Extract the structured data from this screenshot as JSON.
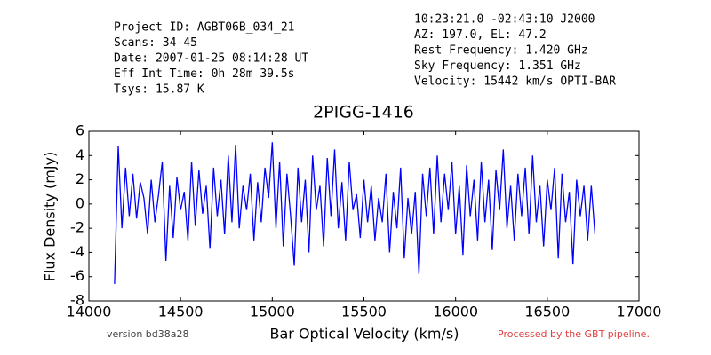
{
  "chart_data": {
    "type": "line",
    "title": "2PIGG-1416",
    "header_left": [
      "Project ID: AGBT06B_034_21",
      "Scans: 34-45",
      "Date: 2007-01-25 08:14:28 UT",
      "Eff Int Time: 0h 28m 39.5s",
      "Tsys: 15.87 K"
    ],
    "header_right": [
      "10:23:21.0 -02:43:10 J2000",
      "AZ: 197.0, EL: 47.2",
      "Rest Frequency:   1.420 GHz",
      "Sky Frequency:    1.351 GHz",
      "Velocity: 15442 km/s OPTI-BAR"
    ],
    "footer_left": "version bd38a28",
    "footer_right": "Processed by the GBT pipeline.",
    "x_label": "Bar Optical Velocity (km/s)",
    "y_label": "Flux Density (mJy)",
    "xlim": [
      14000,
      17000
    ],
    "xticks": [
      14000,
      14500,
      15000,
      15500,
      16000,
      16500,
      17000
    ],
    "ylim": [
      -8,
      6
    ],
    "yticks": [
      -8,
      -6,
      -4,
      -2,
      0,
      2,
      4,
      6
    ],
    "x": [
      14140,
      14160,
      14180,
      14200,
      14220,
      14240,
      14260,
      14280,
      14300,
      14320,
      14340,
      14360,
      14380,
      14400,
      14420,
      14440,
      14460,
      14480,
      14500,
      14520,
      14540,
      14560,
      14580,
      14600,
      14620,
      14640,
      14660,
      14680,
      14700,
      14720,
      14740,
      14760,
      14780,
      14800,
      14820,
      14840,
      14860,
      14880,
      14900,
      14920,
      14940,
      14960,
      14980,
      15000,
      15020,
      15040,
      15060,
      15080,
      15100,
      15120,
      15140,
      15160,
      15180,
      15200,
      15220,
      15240,
      15260,
      15280,
      15300,
      15320,
      15340,
      15360,
      15380,
      15400,
      15420,
      15440,
      15460,
      15480,
      15500,
      15520,
      15540,
      15560,
      15580,
      15600,
      15620,
      15640,
      15660,
      15680,
      15700,
      15720,
      15740,
      15760,
      15780,
      15800,
      15820,
      15840,
      15860,
      15880,
      15900,
      15920,
      15940,
      15960,
      15980,
      16000,
      16020,
      16040,
      16060,
      16080,
      16100,
      16120,
      16140,
      16160,
      16180,
      16200,
      16220,
      16240,
      16260,
      16280,
      16300,
      16320,
      16340,
      16360,
      16380,
      16400,
      16420,
      16440,
      16460,
      16480,
      16500,
      16520,
      16540,
      16560,
      16580,
      16600,
      16620,
      16640,
      16660,
      16680,
      16700,
      16720,
      16740,
      16760
    ],
    "series": [
      {
        "color": "#0000ff",
        "values": [
          -6.6,
          4.8,
          -2.0,
          3.0,
          -1.0,
          2.5,
          -1.2,
          1.8,
          0.5,
          -2.5,
          2.0,
          -1.5,
          0.8,
          3.5,
          -4.7,
          1.5,
          -2.8,
          2.2,
          -0.5,
          1.0,
          -3.0,
          3.5,
          -1.8,
          2.8,
          -0.8,
          1.5,
          -3.7,
          3.0,
          -1.0,
          2.0,
          -2.5,
          4.0,
          -1.5,
          4.9,
          -2.0,
          1.5,
          -0.5,
          2.5,
          -3.0,
          1.8,
          -1.5,
          3.0,
          0.5,
          5.1,
          -2.0,
          3.5,
          -3.5,
          2.5,
          -1.0,
          -5.1,
          3.0,
          -1.5,
          2.0,
          -4.0,
          4.0,
          -0.5,
          1.5,
          -3.5,
          3.8,
          -1.0,
          4.5,
          -2.0,
          1.8,
          -3.0,
          3.5,
          -0.5,
          0.8,
          -2.8,
          2.0,
          -1.5,
          1.5,
          -3.0,
          0.5,
          -1.5,
          2.5,
          -4.0,
          1.0,
          -2.0,
          3.0,
          -4.5,
          0.5,
          -2.5,
          1.0,
          -5.8,
          2.5,
          -1.0,
          3.0,
          -2.5,
          4.0,
          -1.5,
          2.5,
          -0.5,
          3.5,
          -2.5,
          1.5,
          -4.2,
          3.2,
          -1.0,
          2.0,
          -3.0,
          3.5,
          -1.5,
          2.0,
          -3.8,
          2.8,
          -0.5,
          4.5,
          -2.0,
          1.5,
          -3.0,
          2.5,
          -1.0,
          3.0,
          -2.5,
          4.0,
          -1.5,
          1.5,
          -3.5,
          2.0,
          -0.5,
          3.0,
          -4.5,
          2.5,
          -1.5,
          1.0,
          -5.0,
          2.0,
          -1.0,
          1.5,
          -3.0,
          1.5,
          -2.5
        ]
      }
    ]
  }
}
